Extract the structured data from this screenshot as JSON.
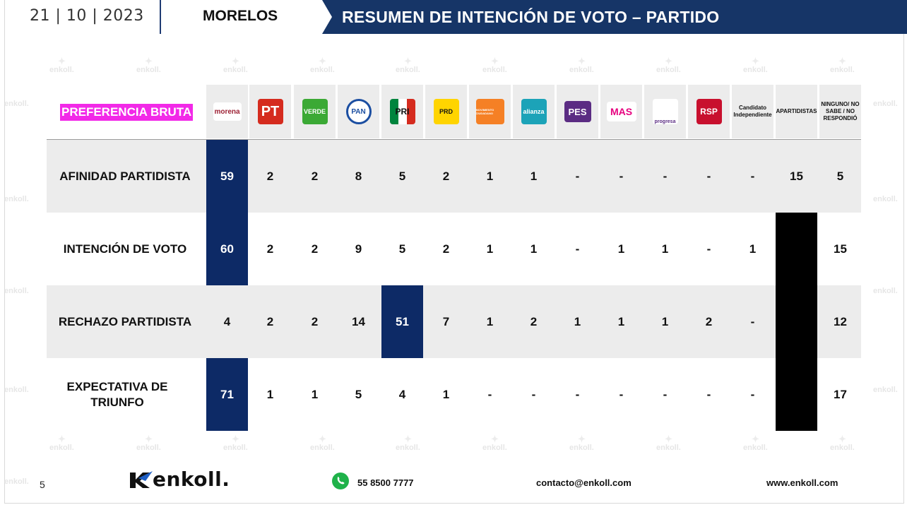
{
  "header": {
    "date": "21 | 10 | 2023",
    "state": "MORELOS",
    "title": "RESUMEN DE INTENCIÓN DE VOTO – PARTIDO"
  },
  "watermark_text": "enkoll.",
  "chart_data": {
    "type": "table",
    "corner_label": "PREFERENCIA BRUTA",
    "columns": [
      {
        "id": "morena",
        "logo_text": "morena",
        "logo_subtext": "La esperanza de México",
        "logo_color": "#9d2235"
      },
      {
        "id": "pt",
        "logo_text": "PT",
        "logo_color": "#d52b1e"
      },
      {
        "id": "verde",
        "logo_text": "VERDE",
        "logo_color": "#3ba935"
      },
      {
        "id": "pan",
        "logo_text": "PAN",
        "logo_color": "#1b4ea1"
      },
      {
        "id": "pri",
        "logo_text": "PRI",
        "logo_color": "#00843d"
      },
      {
        "id": "prd",
        "logo_text": "PRD",
        "logo_color": "#ffd400"
      },
      {
        "id": "mc",
        "logo_text": "MOVIMIENTO CIUDADANO",
        "logo_color": "#f58025"
      },
      {
        "id": "alianza",
        "logo_text": "alianza",
        "logo_color": "#1ca3b8"
      },
      {
        "id": "pes",
        "logo_text": "PES",
        "logo_color": "#5b2c83"
      },
      {
        "id": "mas",
        "logo_text": "MAS",
        "logo_color": "#e6007e"
      },
      {
        "id": "progresa",
        "logo_text": "progresa",
        "logo_color": "#8bc53f"
      },
      {
        "id": "rsp",
        "logo_text": "RSP",
        "logo_color": "#c8102e"
      },
      {
        "id": "independiente",
        "label": "Candidato Independiente"
      },
      {
        "id": "apartidistas",
        "label": "APARTIDISTAS"
      },
      {
        "id": "ninguno",
        "label": "NINGUNO/ NO SABE / NO RESPONDIÓ"
      }
    ],
    "rows": [
      {
        "label": "AFINIDAD PARTIDISTA",
        "values": [
          "59",
          "2",
          "2",
          "8",
          "5",
          "2",
          "1",
          "1",
          "-",
          "-",
          "-",
          "-",
          "-",
          "15",
          "5"
        ],
        "highlight": [
          0
        ],
        "blacked_out": []
      },
      {
        "label": "INTENCIÓN DE VOTO",
        "values": [
          "60",
          "2",
          "2",
          "9",
          "5",
          "2",
          "1",
          "1",
          "-",
          "1",
          "1",
          "-",
          "1",
          "",
          "15"
        ],
        "highlight": [
          0
        ],
        "blacked_out": [
          13
        ]
      },
      {
        "label": "RECHAZO PARTIDISTA",
        "values": [
          "4",
          "2",
          "2",
          "14",
          "51",
          "7",
          "1",
          "2",
          "1",
          "1",
          "1",
          "2",
          "-",
          "",
          "12"
        ],
        "highlight": [
          4
        ],
        "blacked_out": [
          13
        ]
      },
      {
        "label": "EXPECTATIVA DE TRIUNFO",
        "values": [
          "71",
          "1",
          "1",
          "5",
          "4",
          "1",
          "-",
          "-",
          "-",
          "-",
          "-",
          "-",
          "-",
          "",
          "17"
        ],
        "highlight": [
          0
        ],
        "blacked_out": [
          13
        ]
      }
    ],
    "colors": {
      "highlight": "#0d2a66",
      "row_shade": "#ececec",
      "banner": "#163567",
      "corner_label_bg": "#f229e8"
    }
  },
  "footer": {
    "page_number": "5",
    "brand": "enkoll.",
    "phone": "55 8500 7777",
    "email": "contacto@enkoll.com",
    "website": "www.enkoll.com",
    "phone_icon": "whatsapp-icon"
  }
}
